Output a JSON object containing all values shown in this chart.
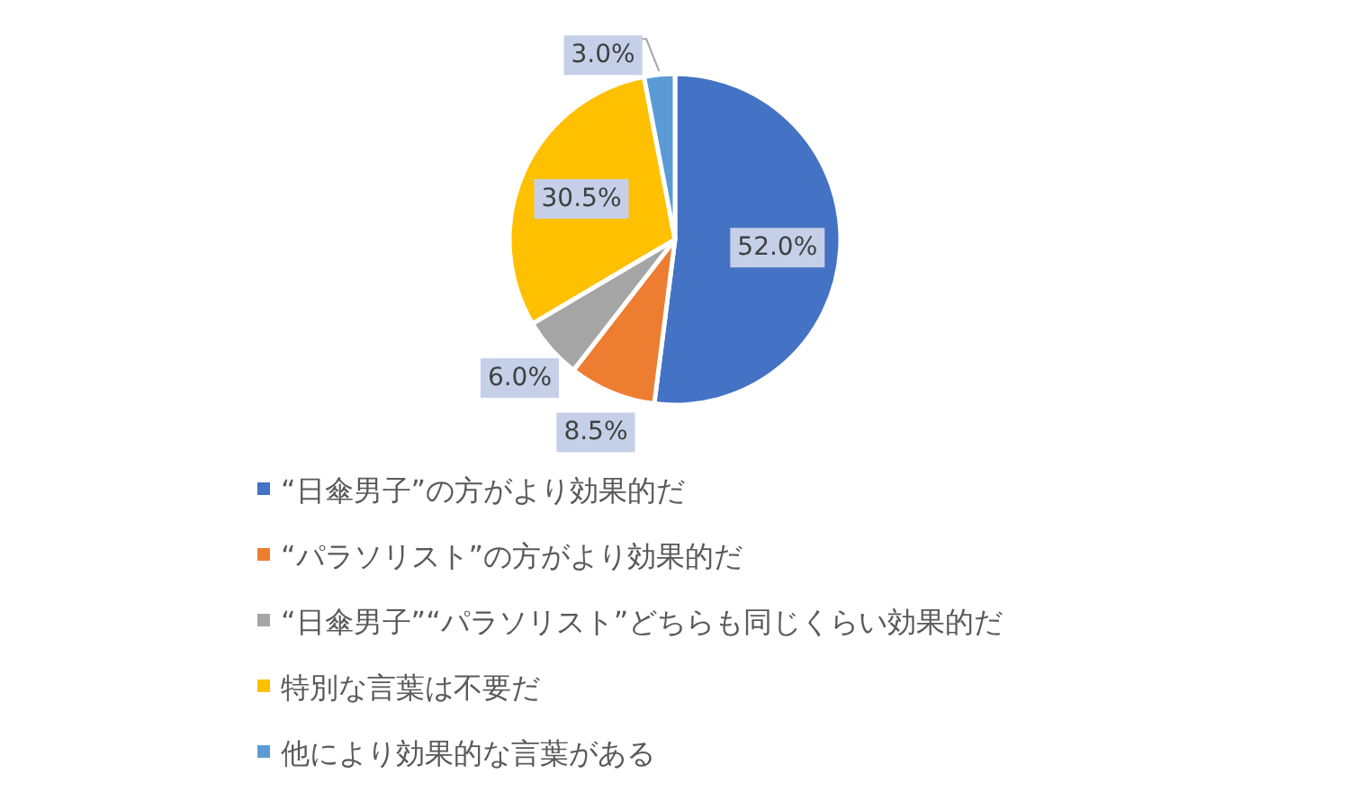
{
  "chart_data": {
    "type": "pie",
    "categories": [
      "“日傘男子”の方がより効果的だ",
      "“パラソリスト”の方がより効果的だ",
      "“日傘男子”“パラソリスト”どちらも同じくらい効果的だ",
      "特別な言葉は不要だ",
      "他により効果的な言葉がある"
    ],
    "values": [
      52.0,
      8.5,
      6.0,
      30.5,
      3.0
    ],
    "value_labels": [
      "52.0%",
      "8.5%",
      "6.0%",
      "30.5%",
      "3.0%"
    ],
    "colors": [
      "#4472c4",
      "#ed7d31",
      "#a5a5a5",
      "#ffc000",
      "#5b9bd5"
    ],
    "legend": "bottom"
  }
}
